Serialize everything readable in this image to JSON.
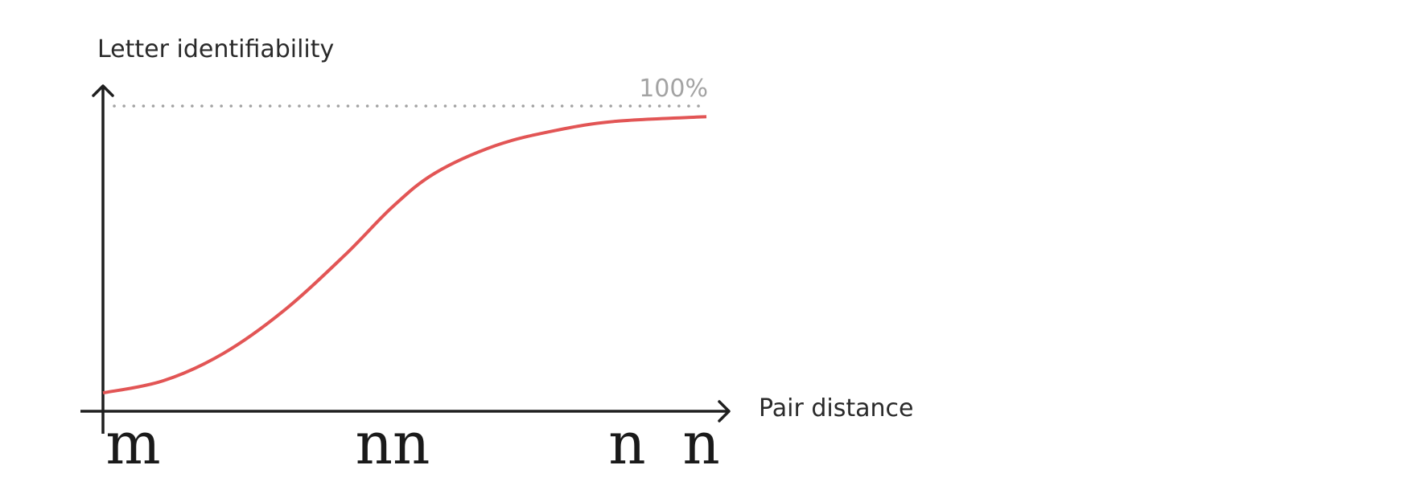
{
  "chart_data": {
    "type": "line",
    "title": "",
    "xlabel": "Pair distance",
    "ylabel": "Letter identifiability",
    "xlim": [
      0,
      1
    ],
    "ylim": [
      0,
      1
    ],
    "grid": false,
    "legend": "none",
    "reference_line": {
      "y": 1.0,
      "label": "100%",
      "style": "dotted",
      "color": "#a3a3a3"
    },
    "x_tick_labels": [
      {
        "x": 0.05,
        "text": "m"
      },
      {
        "x": 0.48,
        "text": "nn"
      },
      {
        "x": 0.93,
        "text": "n  n"
      }
    ],
    "series": [
      {
        "color": "#e25555",
        "points": [
          [
            0.0,
            0.06
          ],
          [
            0.1,
            0.1
          ],
          [
            0.2,
            0.19
          ],
          [
            0.3,
            0.33
          ],
          [
            0.4,
            0.51
          ],
          [
            0.48,
            0.67
          ],
          [
            0.55,
            0.78
          ],
          [
            0.65,
            0.87
          ],
          [
            0.75,
            0.92
          ],
          [
            0.85,
            0.95
          ],
          [
            1.0,
            0.965
          ]
        ]
      }
    ],
    "axis_color": "#1f1f1f"
  }
}
